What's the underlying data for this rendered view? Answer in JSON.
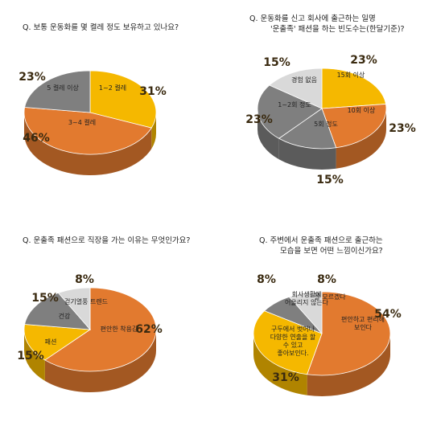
{
  "colors": {
    "orange": "#E27A2F",
    "yellow": "#F5B800",
    "gray": "#7F7F7F",
    "light": "#D9D9D9"
  },
  "chart_data": [
    {
      "type": "pie",
      "title": "Q. 보통 운동화를 몇 켤레 정도 보유하고 있나요?",
      "slices": [
        {
          "label": "1~2 켤레",
          "value": 31,
          "value_label": "31%",
          "color": "yellow"
        },
        {
          "label": "3~4 켤레",
          "value": 46,
          "value_label": "46%",
          "color": "orange"
        },
        {
          "label": "5 켤레 이상",
          "value": 23,
          "value_label": "23%",
          "color": "gray"
        }
      ]
    },
    {
      "type": "pie",
      "title": "Q. 운동화를 신고 회사에 출근하는 일명 '운출족' 패션을 하는 빈도수는(한달기준)?",
      "slices": [
        {
          "label": "15회 이상",
          "value": 23,
          "value_label": "23%",
          "color": "yellow"
        },
        {
          "label": "10회 이상",
          "value": 23,
          "value_label": "23%",
          "color": "orange"
        },
        {
          "label": "5회 정도",
          "value": 15,
          "value_label": "15%",
          "color": "gray"
        },
        {
          "label": "1~2회 정도",
          "value": 23,
          "value_label": "23%",
          "color": "gray"
        },
        {
          "label": "경험 없음",
          "value": 15,
          "value_label": "15%",
          "color": "light"
        }
      ]
    },
    {
      "type": "pie",
      "title": "Q. 운출족 패션으로 직장을 가는 이유는 무엇인가요?",
      "slices": [
        {
          "label": "편안한 착용감",
          "value": 62,
          "value_label": "62%",
          "color": "orange"
        },
        {
          "label": "패션",
          "value": 15,
          "value_label": "15%",
          "color": "yellow"
        },
        {
          "label": "건강",
          "value": 15,
          "value_label": "15%",
          "color": "gray"
        },
        {
          "label": "걷기열풍 트렌드",
          "value": 8,
          "value_label": "8%",
          "color": "light"
        }
      ]
    },
    {
      "type": "pie",
      "title": "Q. 주변에서 운출족 패션으로 출근하는 모습을 보면 어떤 느낌이신가요?",
      "slices": [
        {
          "label": "편안하고 편리해 보인다",
          "value": 54,
          "value_label": "54%",
          "color": "orange"
        },
        {
          "label": "구두에서 벗어나 다양한 연출을 할 수 있고 좋아보인다.",
          "value": 31,
          "value_label": "31%",
          "color": "yellow"
        },
        {
          "label": "회사생활에 어울리지 않는다",
          "value": 8,
          "value_label": "8%",
          "color": "gray"
        },
        {
          "label": "잘 모르겠다",
          "value": 8,
          "value_label": "8%",
          "color": "light"
        }
      ]
    }
  ]
}
